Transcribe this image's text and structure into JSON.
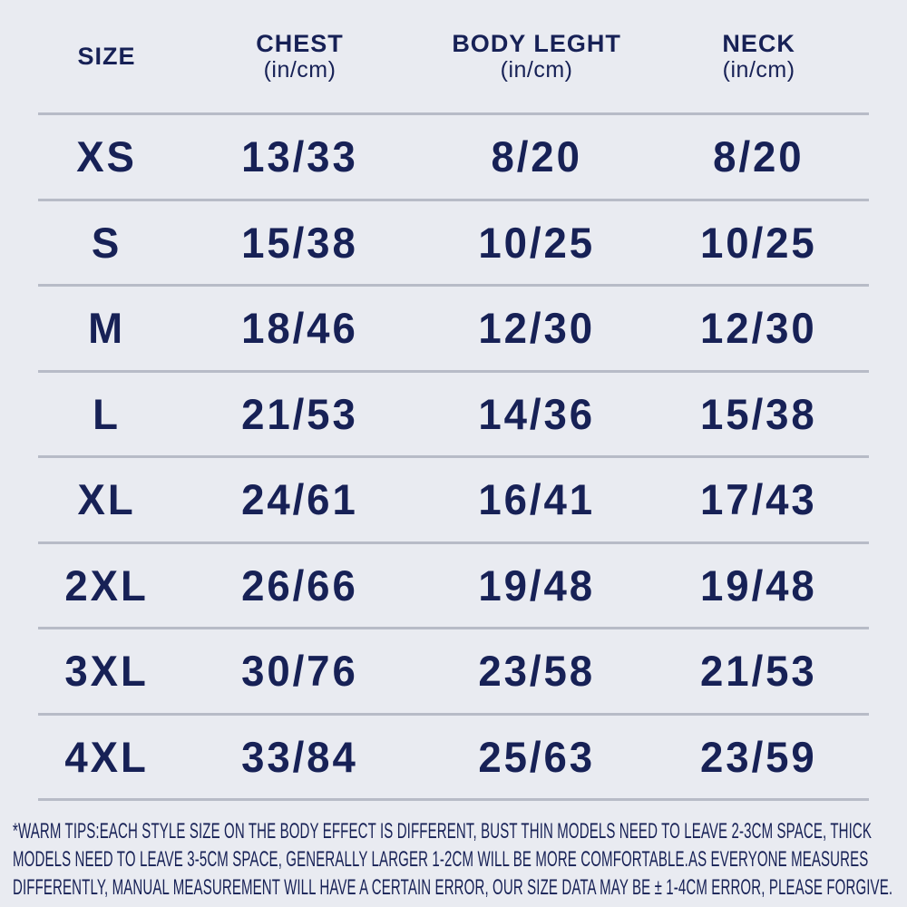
{
  "colors": {
    "background": "#e9ebf1",
    "ink": "#172156",
    "divider": "#b7bbc7"
  },
  "chart_data": {
    "type": "table",
    "title": "",
    "columns": [
      {
        "label": "SIZE",
        "sublabel": ""
      },
      {
        "label": "CHEST",
        "sublabel": "(in/cm)"
      },
      {
        "label": "BODY LEGHT",
        "sublabel": "(in/cm)"
      },
      {
        "label": "NECK",
        "sublabel": "(in/cm)"
      }
    ],
    "rows": [
      {
        "size": "XS",
        "chest": "13/33",
        "body_length": "8/20",
        "neck": "8/20"
      },
      {
        "size": "S",
        "chest": "15/38",
        "body_length": "10/25",
        "neck": "10/25"
      },
      {
        "size": "M",
        "chest": "18/46",
        "body_length": "12/30",
        "neck": "12/30"
      },
      {
        "size": "L",
        "chest": "21/53",
        "body_length": "14/36",
        "neck": "15/38"
      },
      {
        "size": "XL",
        "chest": "24/61",
        "body_length": "16/41",
        "neck": "17/43"
      },
      {
        "size": "2XL",
        "chest": "26/66",
        "body_length": "19/48",
        "neck": "19/48"
      },
      {
        "size": "3XL",
        "chest": "30/76",
        "body_length": "23/58",
        "neck": "21/53"
      },
      {
        "size": "4XL",
        "chest": "33/84",
        "body_length": "25/63",
        "neck": "23/59"
      }
    ]
  },
  "footer": {
    "lines": [
      "*WARM TIPS:EACH STYLE SIZE ON THE BODY EFFECT IS DIFFERENT, BUST THIN MODELS NEED TO LEAVE 2-3CM SPACE, THICK",
      "MODELS NEED TO LEAVE 3-5CM SPACE, GENERALLY LARGER 1-2CM WILL BE MORE COMFORTABLE.AS EVERYONE MEASURES",
      "DIFFERENTLY, MANUAL MEASUREMENT WILL HAVE A CERTAIN ERROR, OUR SIZE DATA MAY BE ± 1-4CM ERROR, PLEASE FORGIVE."
    ]
  }
}
